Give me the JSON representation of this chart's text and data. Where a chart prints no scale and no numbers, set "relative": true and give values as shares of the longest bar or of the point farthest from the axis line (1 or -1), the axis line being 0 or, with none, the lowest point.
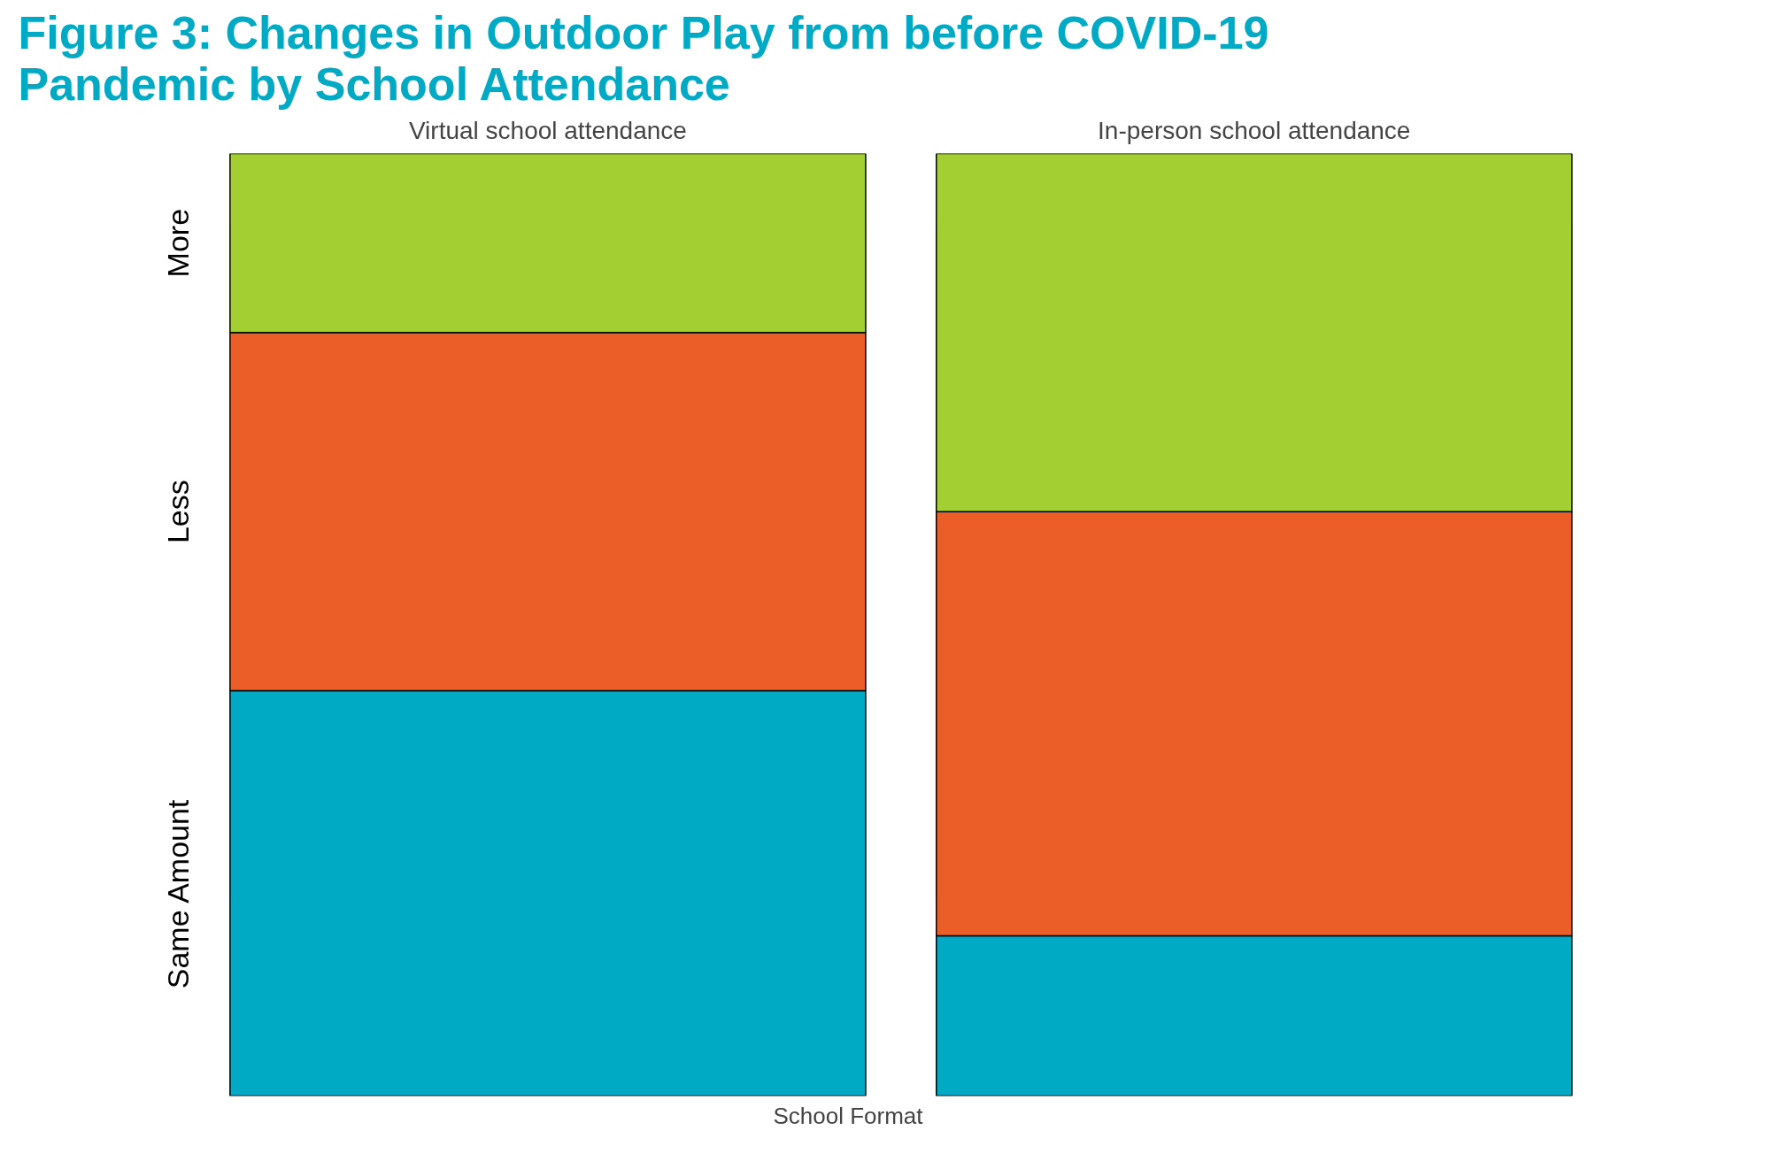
{
  "chart_data": {
    "type": "bar",
    "stacked": true,
    "relative": true,
    "title": "Figure 3: Changes in Outdoor Play from before COVID-19 Pandemic by School Attendance",
    "xlabel": "School Format",
    "categories": [
      "Virtual school attendance",
      "In-person school attendance"
    ],
    "series": [
      {
        "name": "Same Amount",
        "color": "#00a9c4",
        "values": [
          0.43,
          0.17
        ]
      },
      {
        "name": "Less",
        "color": "#ec5e28",
        "values": [
          0.38,
          0.45
        ]
      },
      {
        "name": "More",
        "color": "#a4cf32",
        "values": [
          0.19,
          0.38
        ]
      }
    ]
  }
}
